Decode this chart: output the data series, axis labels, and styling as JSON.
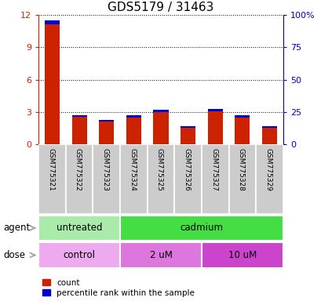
{
  "title": "GDS5179 / 31463",
  "samples": [
    "GSM775321",
    "GSM775322",
    "GSM775323",
    "GSM775324",
    "GSM775325",
    "GSM775326",
    "GSM775327",
    "GSM775328",
    "GSM775329"
  ],
  "red_values": [
    11.5,
    2.7,
    2.3,
    2.7,
    3.2,
    1.7,
    3.3,
    2.7,
    1.7
  ],
  "blue_values": [
    0.38,
    0.15,
    0.18,
    0.18,
    0.2,
    0.15,
    0.2,
    0.2,
    0.15
  ],
  "ylim_left": [
    0,
    12
  ],
  "ylim_right": [
    0,
    100
  ],
  "yticks_left": [
    0,
    3,
    6,
    9,
    12
  ],
  "yticks_right": [
    0,
    25,
    50,
    75,
    100
  ],
  "ytick_labels_right": [
    "0",
    "25",
    "50",
    "75",
    "100%"
  ],
  "left_axis_color": "#cc2200",
  "right_axis_color": "#0000cc",
  "bar_width": 0.55,
  "agent_groups": [
    {
      "label": "untreated",
      "start": 0,
      "end": 3,
      "color": "#aaeaaa"
    },
    {
      "label": "cadmium",
      "start": 3,
      "end": 9,
      "color": "#44dd44"
    }
  ],
  "dose_groups": [
    {
      "label": "control",
      "start": 0,
      "end": 3,
      "color": "#eeaaee"
    },
    {
      "label": "2 uM",
      "start": 3,
      "end": 6,
      "color": "#dd77dd"
    },
    {
      "label": "10 uM",
      "start": 6,
      "end": 9,
      "color": "#cc44cc"
    }
  ],
  "legend_red_label": "count",
  "legend_blue_label": "percentile rank within the sample",
  "title_fontsize": 11,
  "tick_label_fontsize": 8,
  "background_color": "#ffffff",
  "xticklabel_bg": "#cccccc",
  "grid_color": "#000000",
  "arrow_color": "#aaaaaa"
}
